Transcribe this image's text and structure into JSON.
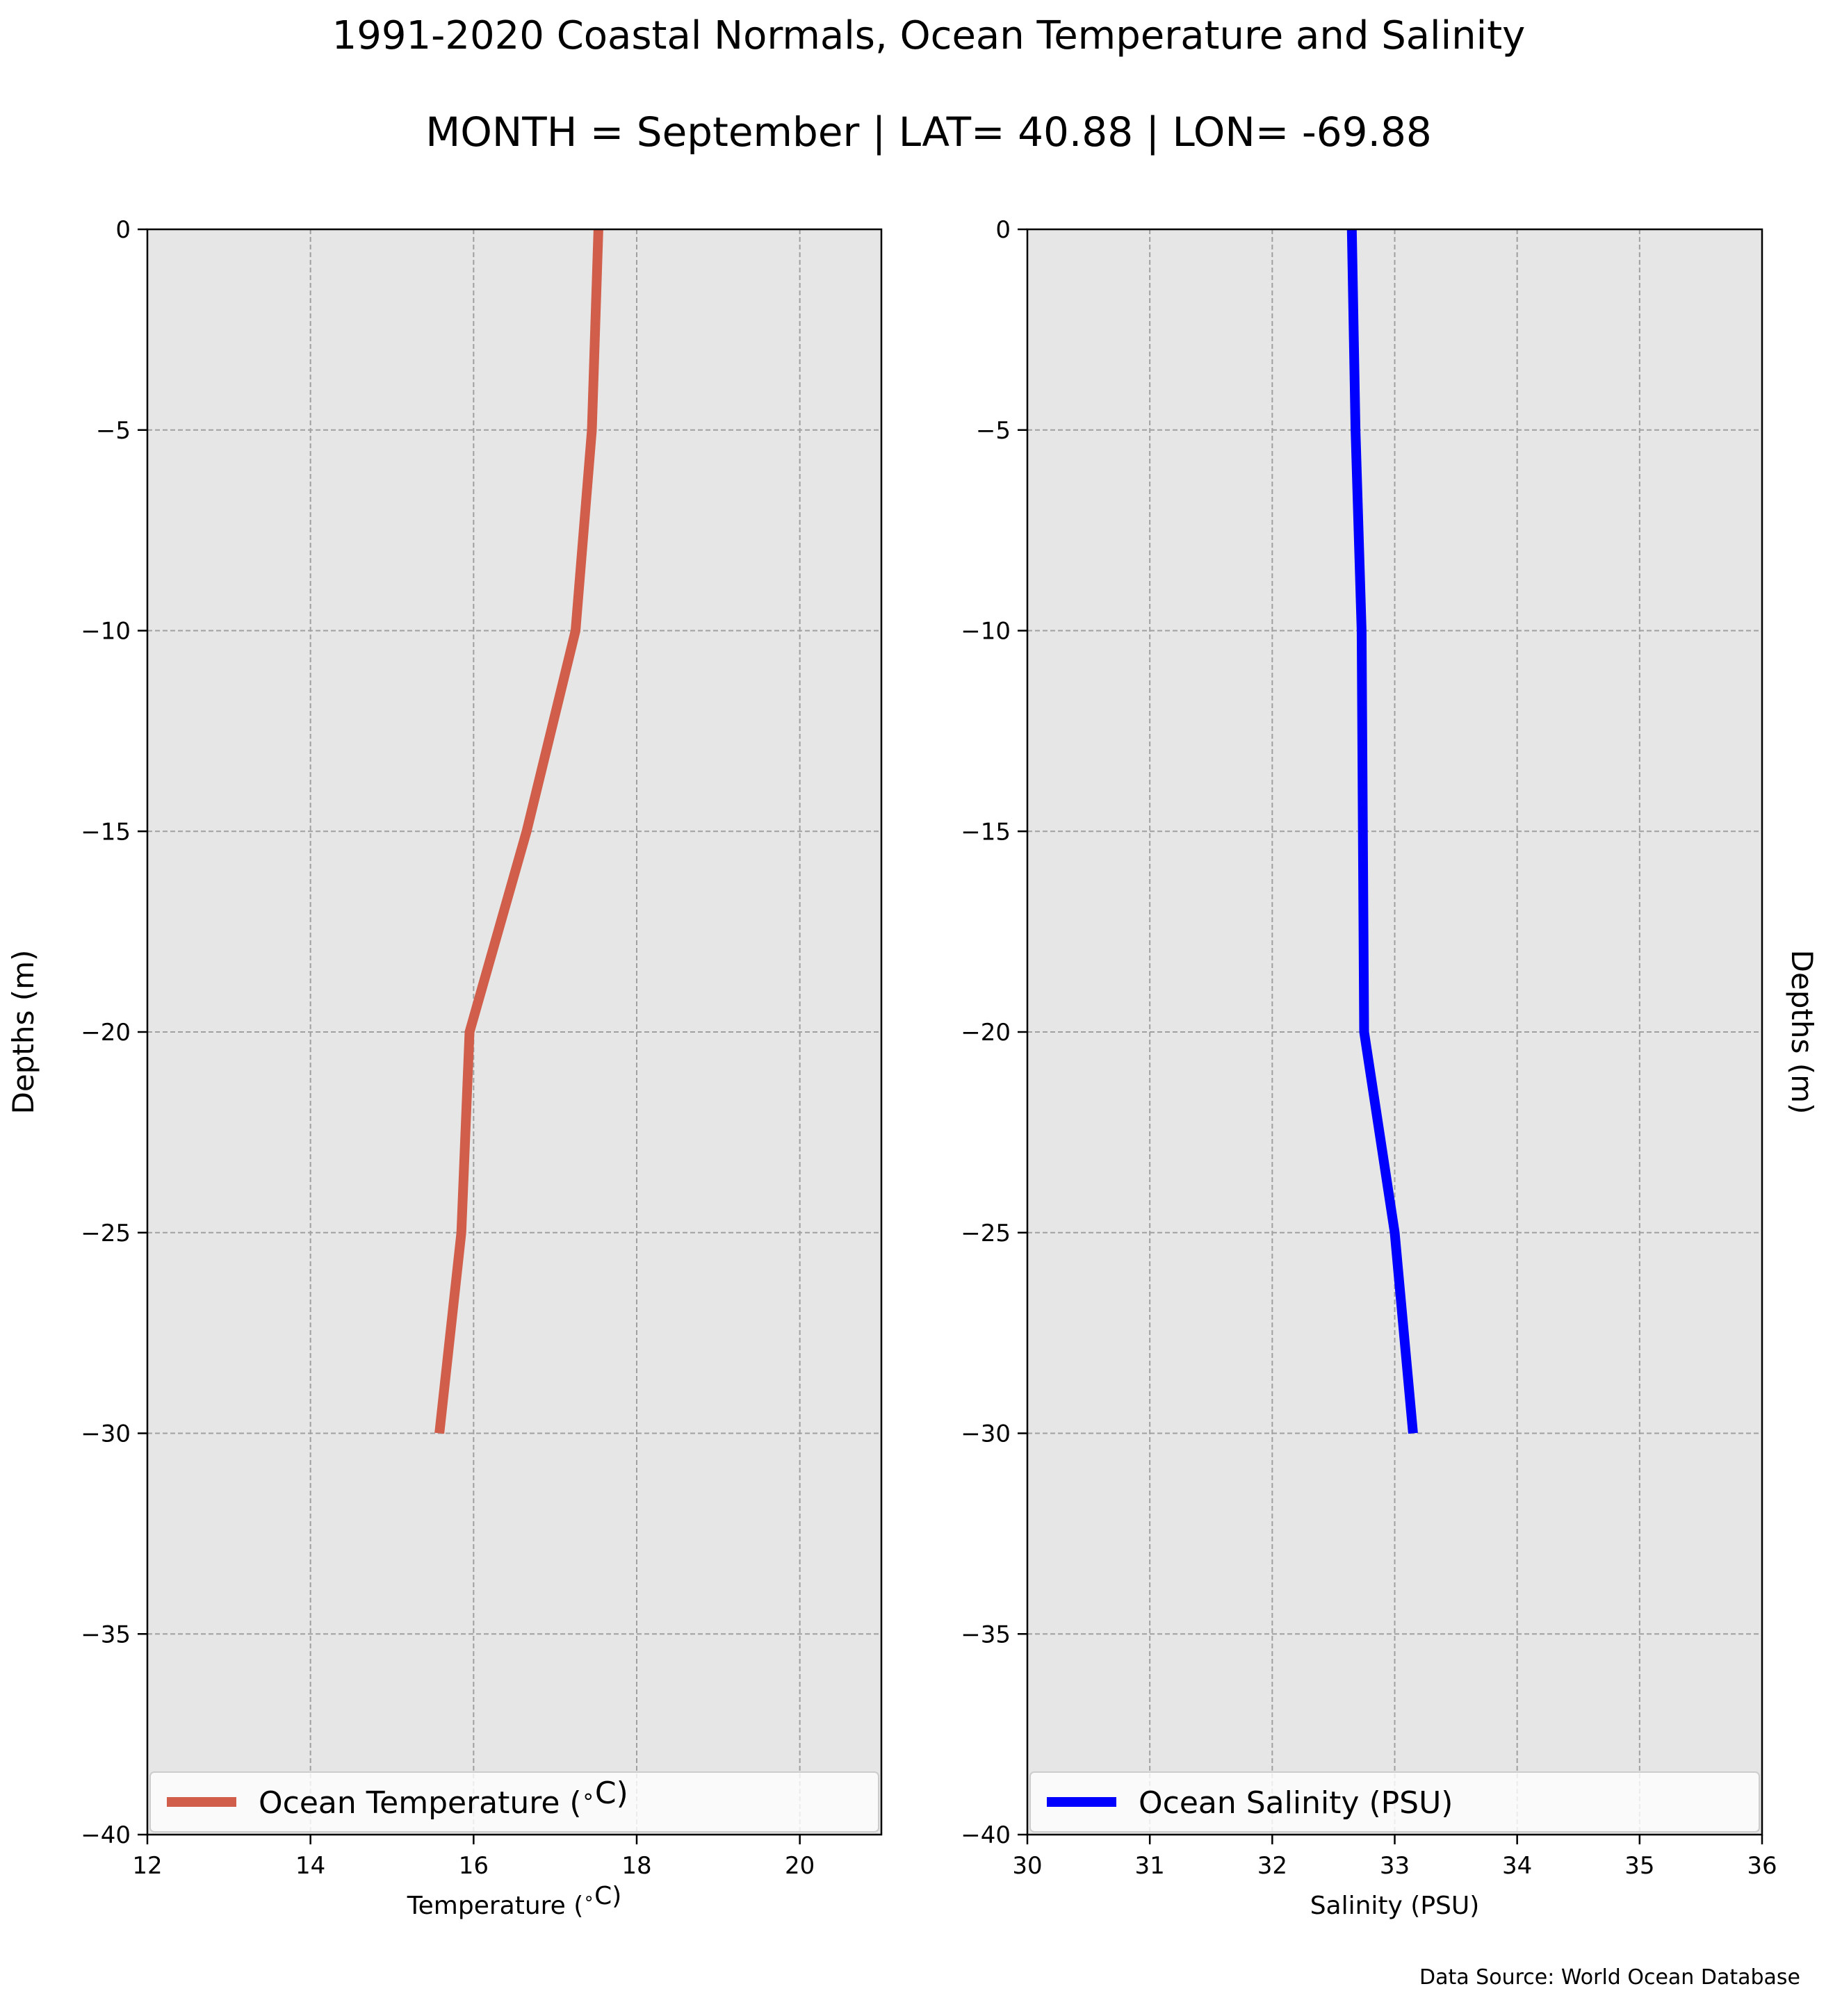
{
  "figure": {
    "title": "1991-2020 Coastal Normals, Ocean Temperature and Salinity",
    "subtitle": "MONTH = September | LAT= 40.88 | LON= -69.88",
    "footnote": "Data Source: World Ocean Database"
  },
  "chart_data": [
    {
      "type": "line",
      "title": "",
      "xlabel": "Temperature ($^\\circ$C)",
      "ylabel": "Depths (m)",
      "xlim": [
        12,
        21
      ],
      "ylim": [
        -40,
        0
      ],
      "xticks": [
        "12",
        "14",
        "16",
        "18",
        "20"
      ],
      "yticks": [
        "0",
        "−5",
        "−10",
        "−15",
        "−20",
        "−25",
        "−30",
        "−35",
        "−40"
      ],
      "grid": true,
      "legend_position": "lower center",
      "series": [
        {
          "name": "Ocean Temperature ($^\\circ$C)",
          "color": "#d05e4a",
          "x": [
            17.53,
            17.45,
            17.25,
            16.65,
            15.95,
            15.85,
            15.58
          ],
          "y": [
            0,
            -5,
            -10,
            -15,
            -20,
            -25,
            -30
          ]
        }
      ]
    },
    {
      "type": "line",
      "title": "",
      "xlabel": "Salinity (PSU)",
      "ylabel": "Depths (m)",
      "xlim": [
        30,
        36
      ],
      "ylim": [
        -40,
        0
      ],
      "xticks": [
        "30",
        "31",
        "32",
        "33",
        "34",
        "35",
        "36"
      ],
      "yticks": [
        "0",
        "−5",
        "−10",
        "−15",
        "−20",
        "−25",
        "−30",
        "−35",
        "−40"
      ],
      "grid": true,
      "legend_position": "lower center",
      "series": [
        {
          "name": "Ocean Salinity (PSU)",
          "color": "#0000ff",
          "x": [
            32.65,
            32.68,
            32.73,
            32.74,
            32.75,
            33.0,
            33.15
          ],
          "y": [
            0,
            -5,
            -10,
            -15,
            -20,
            -25,
            -30
          ]
        }
      ]
    }
  ]
}
